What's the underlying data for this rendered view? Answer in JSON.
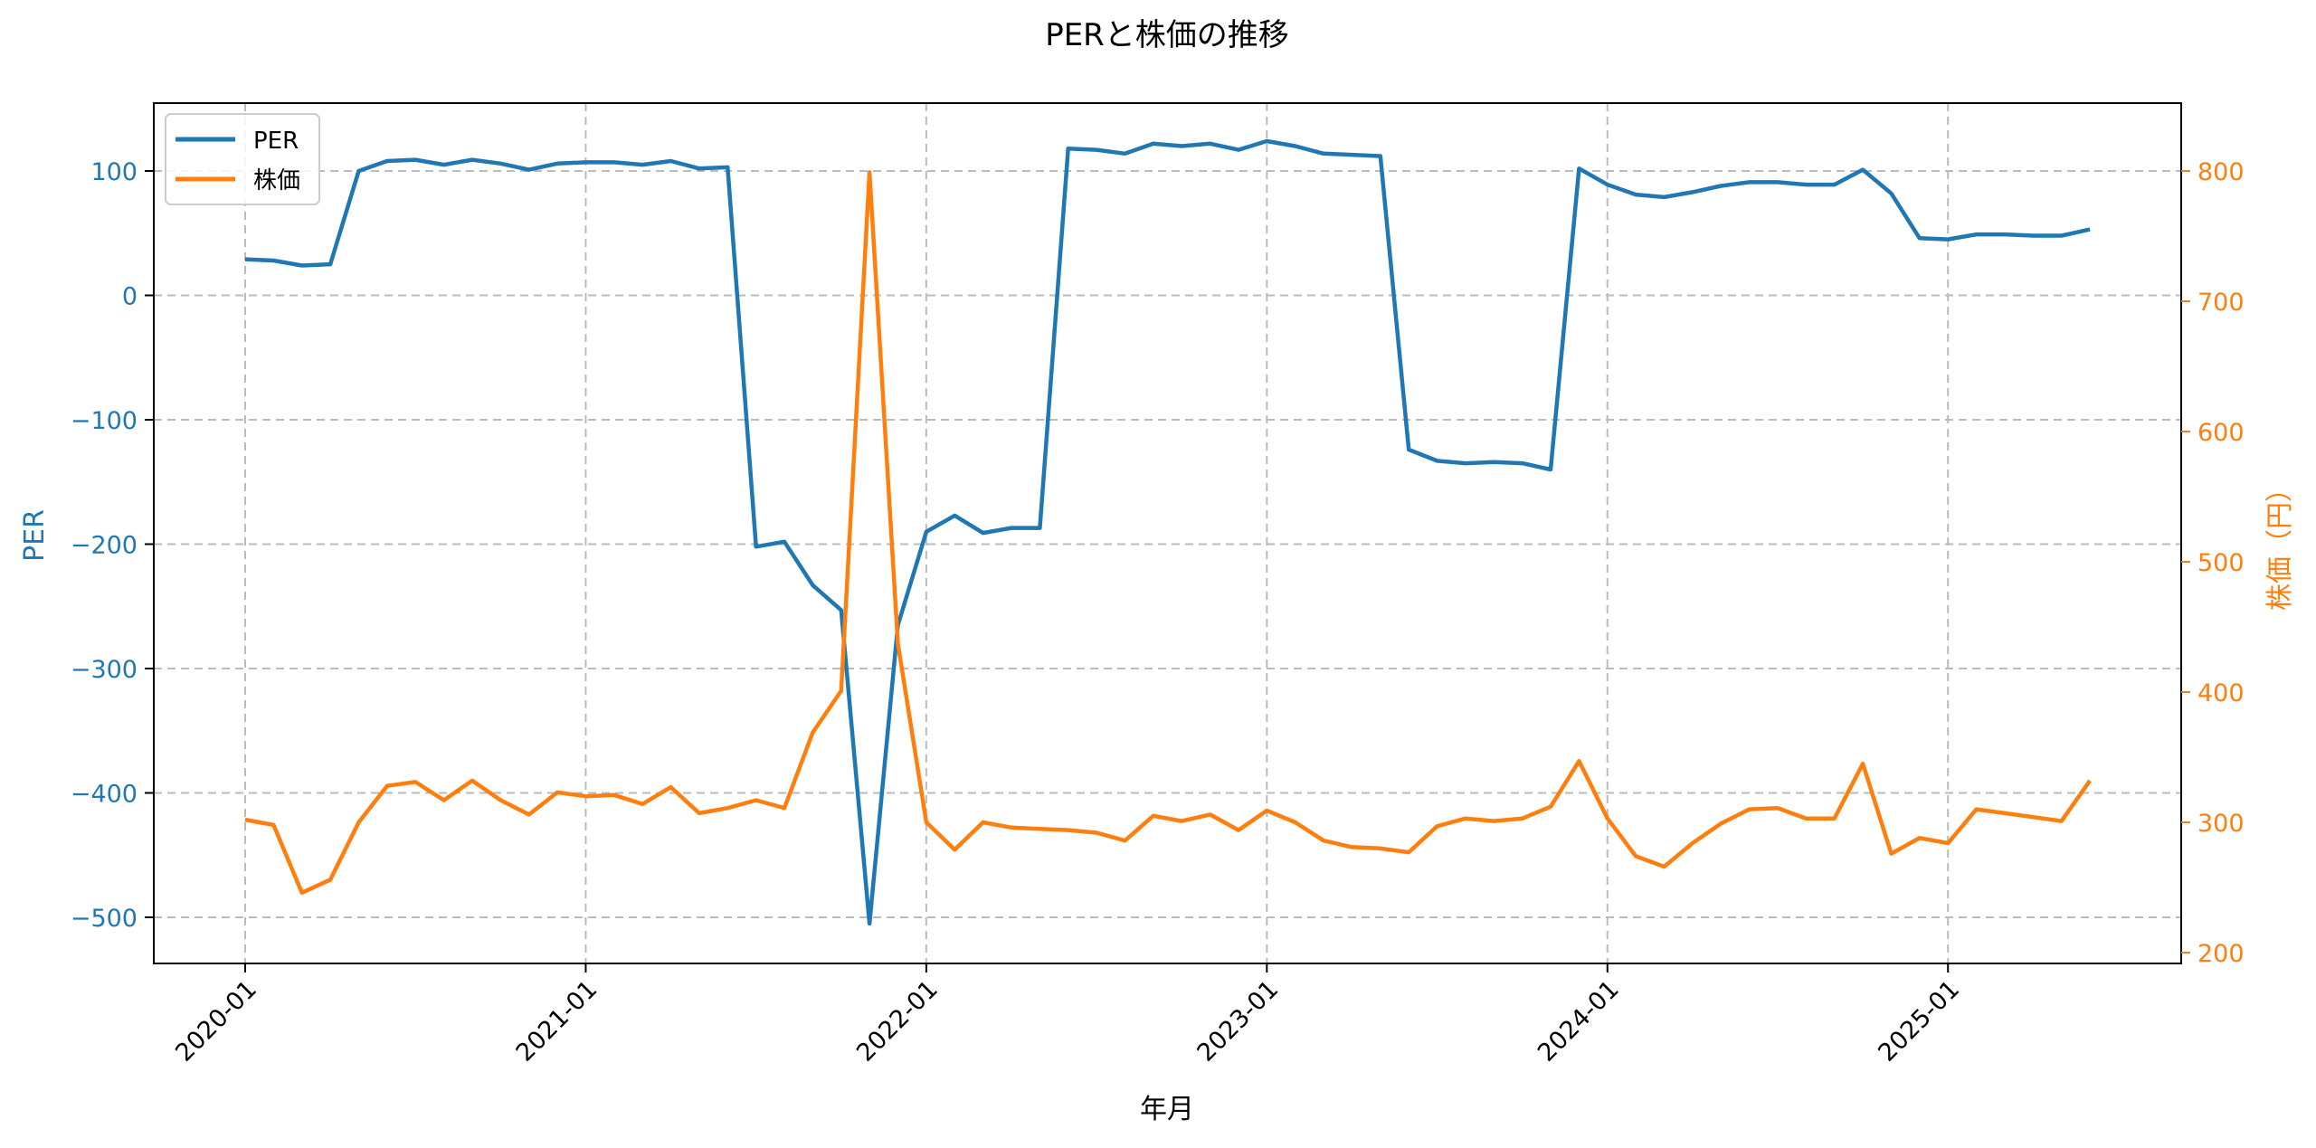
{
  "chart_data": {
    "type": "line",
    "title": "PERと株価の推移",
    "xlabel": "年月",
    "ylabel": "PER",
    "ylabel_right": "株価（円）",
    "ylim": [
      -535,
      152
    ],
    "ylim_right": [
      190,
      850
    ],
    "grid": true,
    "legend_position": "upper left",
    "x_ticks": [
      "2020-01",
      "2021-01",
      "2022-01",
      "2023-01",
      "2024-01",
      "2025-01"
    ],
    "y_ticks": [
      100,
      0,
      -100,
      -200,
      -300,
      -400,
      -500
    ],
    "y_ticks_right": [
      800,
      700,
      600,
      500,
      400,
      300,
      200
    ],
    "x": [
      "2020-01",
      "2020-02",
      "2020-03",
      "2020-04",
      "2020-05",
      "2020-06",
      "2020-07",
      "2020-08",
      "2020-09",
      "2020-10",
      "2020-11",
      "2020-12",
      "2021-01",
      "2021-02",
      "2021-03",
      "2021-04",
      "2021-05",
      "2021-06",
      "2021-07",
      "2021-08",
      "2021-09",
      "2021-10",
      "2021-11",
      "2021-12",
      "2022-01",
      "2022-02",
      "2022-03",
      "2022-04",
      "2022-05",
      "2022-06",
      "2022-07",
      "2022-08",
      "2022-09",
      "2022-10",
      "2022-11",
      "2022-12",
      "2023-01",
      "2023-02",
      "2023-03",
      "2023-04",
      "2023-05",
      "2023-06",
      "2023-07",
      "2023-08",
      "2023-09",
      "2023-10",
      "2023-11",
      "2023-12",
      "2024-01",
      "2024-02",
      "2024-03",
      "2024-04",
      "2024-05",
      "2024-06",
      "2024-07",
      "2024-08",
      "2024-09",
      "2024-10",
      "2024-11",
      "2024-12",
      "2025-01",
      "2025-02",
      "2025-03",
      "2025-04",
      "2025-05",
      "2025-06"
    ],
    "series": [
      {
        "name": "PER",
        "axis": "left",
        "color": "#1f77b4",
        "values": [
          29,
          28,
          24,
          25,
          100,
          108,
          109,
          105,
          109,
          106,
          101,
          106,
          107,
          107,
          105,
          108,
          102,
          103,
          -202,
          -198,
          -233,
          -253,
          -505,
          -265,
          -190,
          -177,
          -191,
          -187,
          -187,
          118,
          117,
          114,
          122,
          120,
          122,
          117,
          124,
          120,
          114,
          113,
          112,
          -124,
          -133,
          -135,
          -134,
          -135,
          -140,
          102,
          89,
          81,
          79,
          83,
          88,
          91,
          91,
          89,
          89,
          101,
          82,
          46,
          45,
          49,
          49,
          48,
          48,
          53
        ]
      },
      {
        "name": "株価",
        "axis": "right",
        "color": "#ff7f0e",
        "values": [
          302,
          298,
          246,
          256,
          300,
          328,
          331,
          317,
          332,
          317,
          306,
          323,
          320,
          321,
          314,
          327,
          307,
          311,
          317,
          311,
          369,
          401,
          799,
          437,
          300,
          279,
          300,
          296,
          295,
          294,
          292,
          286,
          305,
          301,
          306,
          294,
          309,
          300,
          286,
          281,
          280,
          277,
          297,
          303,
          301,
          303,
          312,
          347,
          303,
          274,
          266,
          284,
          299,
          310,
          311,
          303,
          303,
          345,
          276,
          288,
          284,
          310,
          307,
          304,
          301,
          332
        ]
      }
    ]
  },
  "legend": {
    "items": [
      {
        "label": "PER"
      },
      {
        "label": "株価"
      }
    ]
  }
}
